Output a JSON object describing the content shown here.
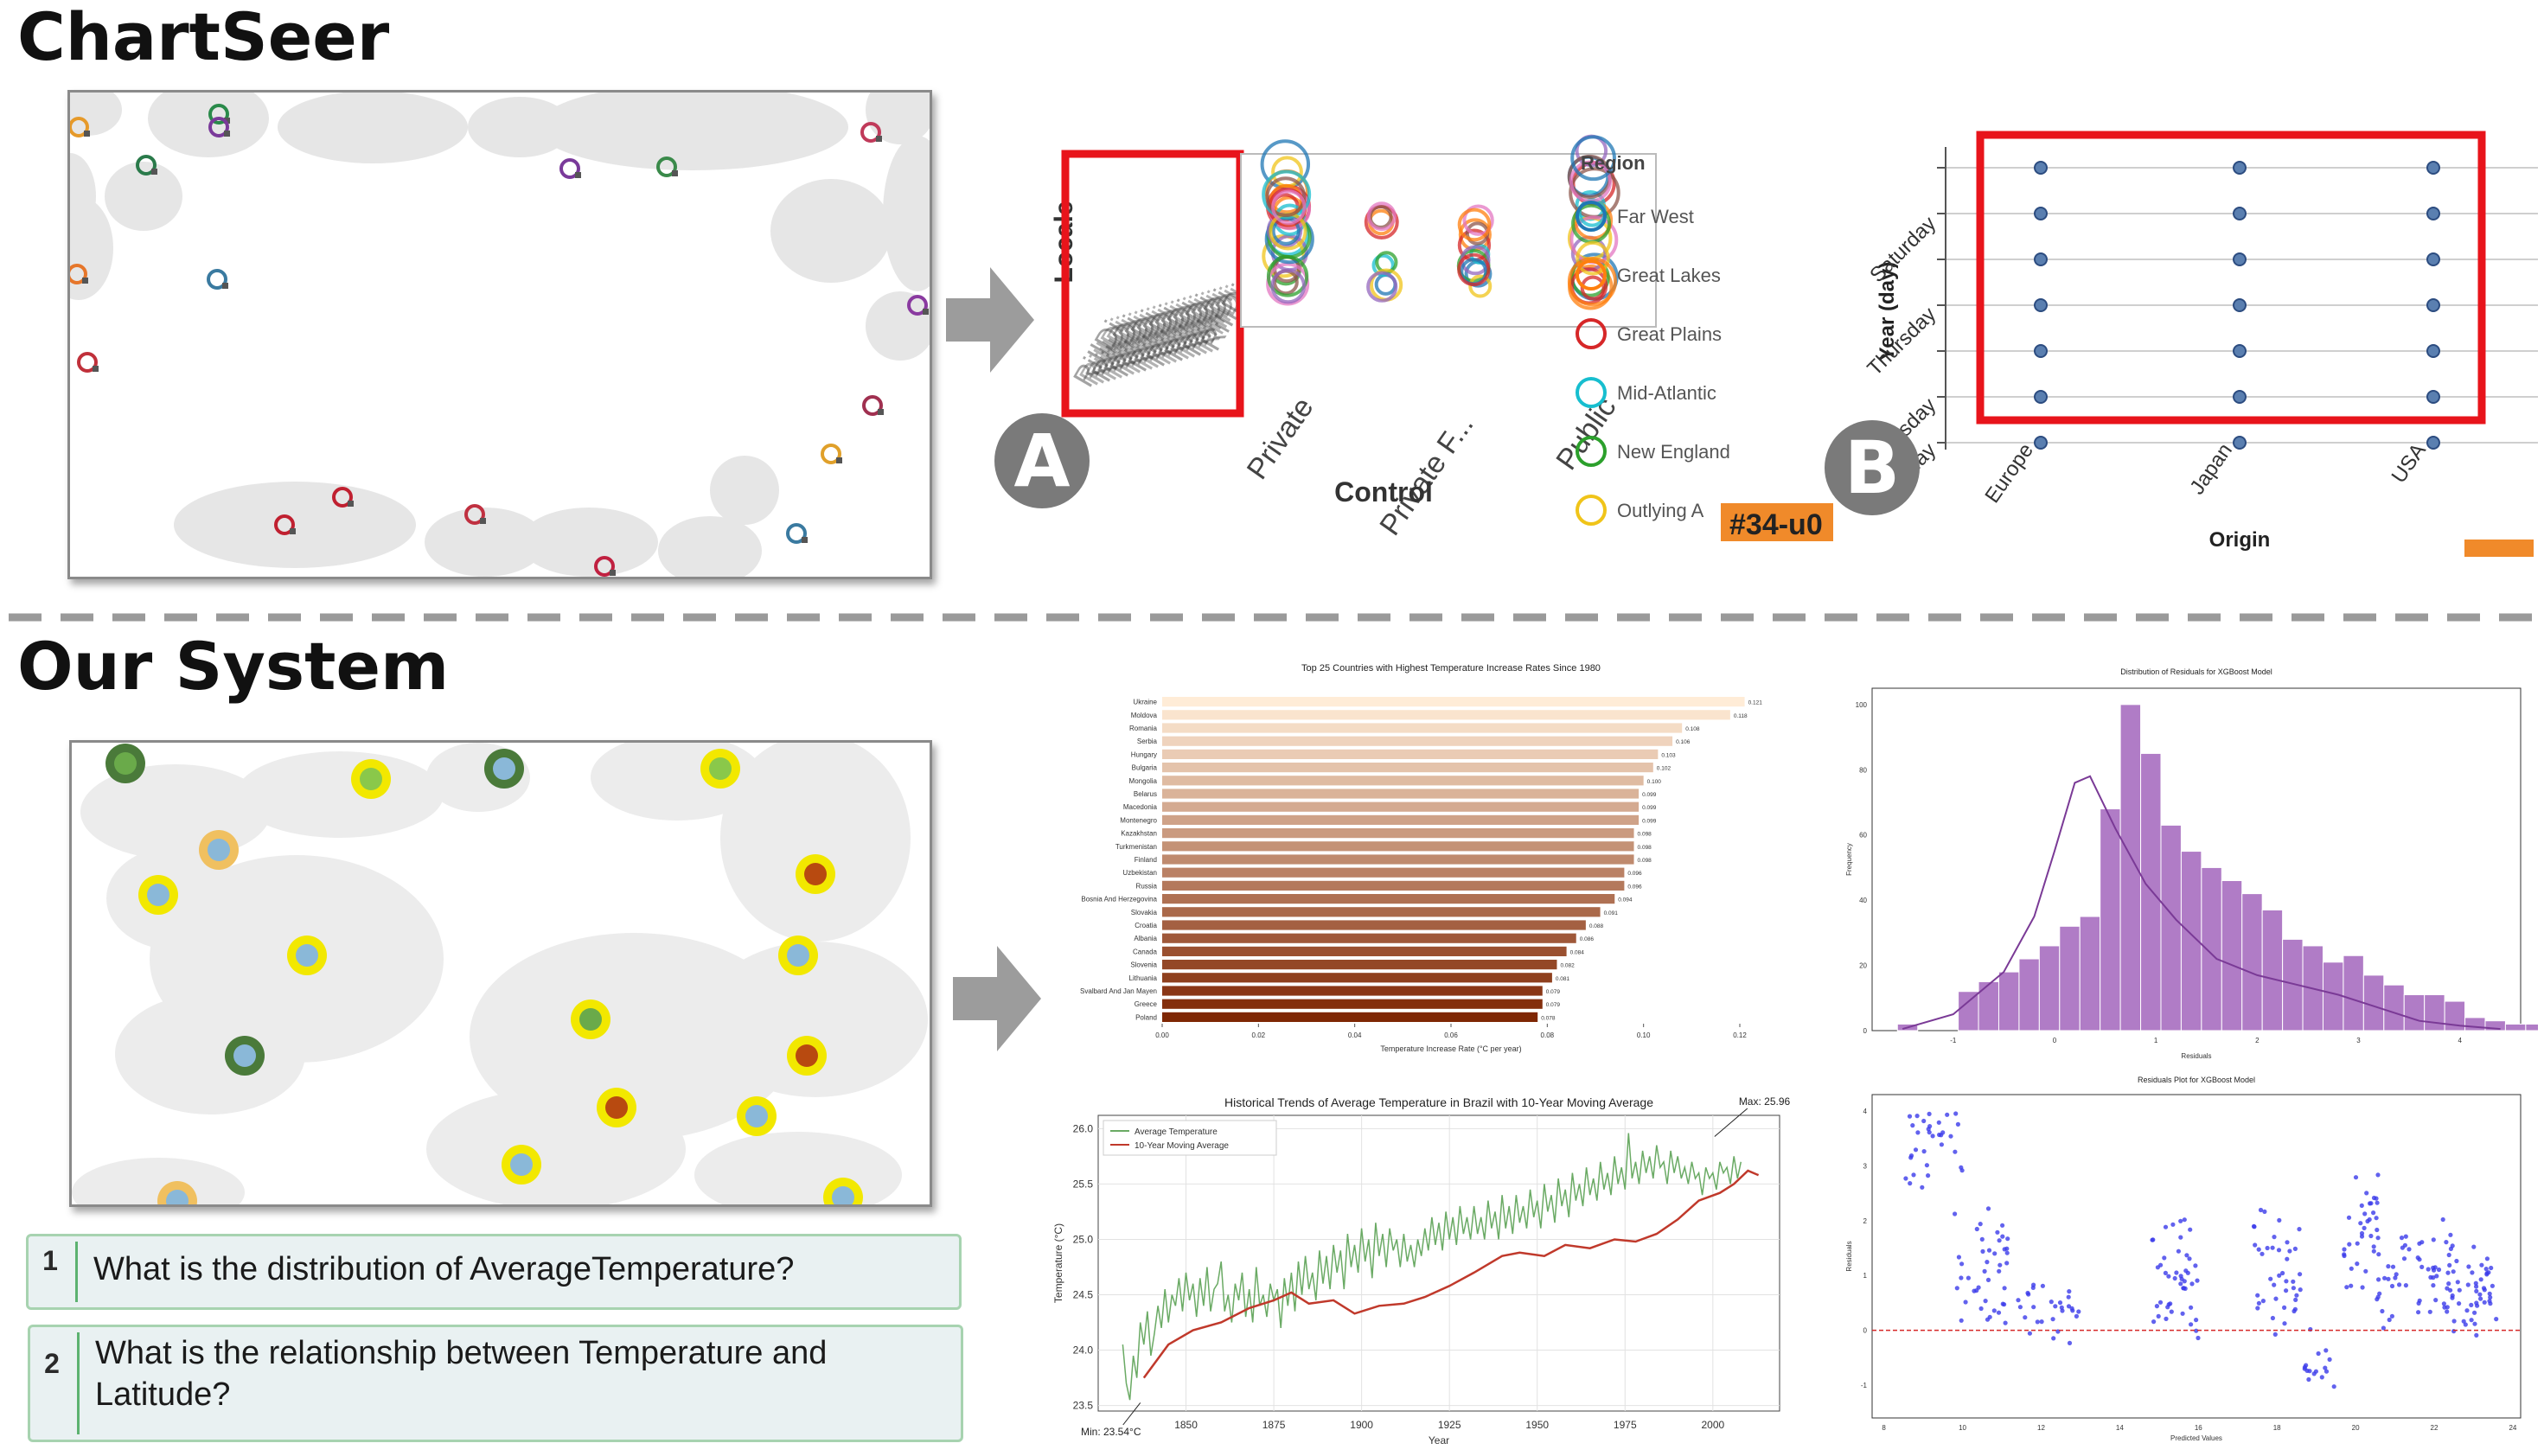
{
  "titles": {
    "chartseer": "ChartSeer",
    "our_system": "Our System"
  },
  "badges": {
    "a": "A",
    "b": "B"
  },
  "chartseer_panel_a": {
    "y_label": "Locale",
    "x_label": "Control",
    "x_ticks": [
      "Private",
      "Private F...",
      "Public"
    ],
    "legend_title": "Region",
    "legend_items": [
      {
        "label": "Far West",
        "color": "#1f77b4"
      },
      {
        "label": "Great Lakes",
        "color": "#ff7f0e"
      },
      {
        "label": "Great Plains",
        "color": "#d62728"
      },
      {
        "label": "Mid-Atlantic",
        "color": "#17becf"
      },
      {
        "label": "New England",
        "color": "#2ca02c"
      },
      {
        "label": "Outlying A",
        "color": "#f0c419"
      }
    ],
    "tag": "#34-u0"
  },
  "chartseer_panel_b": {
    "y_label": "Year (day)",
    "x_label": "Origin",
    "x_ticks": [
      "Europe",
      "Japan",
      "USA"
    ],
    "y_ticks": [
      "Saturday",
      "Thursday",
      "Tuesday",
      "day"
    ]
  },
  "questions": [
    {
      "num": "1",
      "text": "What is the distribution of AverageTemperature?"
    },
    {
      "num": "2",
      "text": "What is the relationship between Temperature and Latitude?"
    }
  ],
  "chart_data": [
    {
      "type": "bar",
      "orientation": "horizontal",
      "title": "Top 25 Countries with Highest Temperature Increase Rates Since 1980",
      "xlabel": "Temperature Increase Rate (°C per year)",
      "categories": [
        "Ukraine",
        "Moldova",
        "Romania",
        "Serbia",
        "Hungary",
        "Bulgaria",
        "Mongolia",
        "Belarus",
        "Macedonia",
        "Montenegro",
        "Kazakhstan",
        "Turkmenistan",
        "Finland",
        "Uzbekistan",
        "Russia",
        "Bosnia And Herzegovina",
        "Slovakia",
        "Croatia",
        "Albania",
        "Canada",
        "Slovenia",
        "Lithuania",
        "Svalbard And Jan Mayen",
        "Greece",
        "Poland"
      ],
      "values": [
        0.121,
        0.118,
        0.108,
        0.106,
        0.103,
        0.102,
        0.1,
        0.099,
        0.099,
        0.099,
        0.098,
        0.098,
        0.098,
        0.096,
        0.096,
        0.094,
        0.091,
        0.088,
        0.086,
        0.084,
        0.082,
        0.081,
        0.079,
        0.079,
        0.078
      ],
      "value_labels": [
        "0.121",
        "0.118",
        "0.108",
        "0.106",
        "0.103",
        "0.102",
        "0.100",
        "0.099",
        "0.099",
        "0.099",
        "0.098",
        "0.098",
        "0.098",
        "0.096",
        "0.096",
        "0.094",
        "0.091",
        "0.088",
        "0.086",
        "0.084",
        "0.082",
        "0.081",
        "0.079",
        "0.079",
        "0.078"
      ],
      "xlim": [
        0,
        0.12
      ],
      "xticks": [
        "0.00",
        "0.02",
        "0.04",
        "0.06",
        "0.08",
        "0.10",
        "0.12"
      ]
    },
    {
      "type": "bar",
      "subtype": "histogram",
      "title": "Distribution of Residuals for XGBoost Model",
      "xlabel": "Residuals",
      "ylabel": "Frequency",
      "bin_start": -1.55,
      "bin_width": 0.2,
      "counts": [
        2,
        0,
        0,
        12,
        15,
        18,
        22,
        26,
        32,
        35,
        68,
        100,
        85,
        63,
        55,
        50,
        46,
        42,
        37,
        28,
        26,
        21,
        23,
        17,
        14,
        11,
        11,
        9,
        4,
        3,
        2,
        2,
        2
      ],
      "kde": [
        [
          -1.5,
          0.5
        ],
        [
          -1.0,
          5
        ],
        [
          -0.5,
          18
        ],
        [
          -0.2,
          35
        ],
        [
          0.0,
          55
        ],
        [
          0.2,
          76
        ],
        [
          0.35,
          78
        ],
        [
          0.6,
          62
        ],
        [
          0.9,
          45
        ],
        [
          1.2,
          34
        ],
        [
          1.6,
          22
        ],
        [
          2.0,
          17
        ],
        [
          2.4,
          14
        ],
        [
          2.8,
          11
        ],
        [
          3.2,
          7
        ],
        [
          3.6,
          3
        ],
        [
          4.0,
          1.5
        ],
        [
          4.4,
          0.5
        ]
      ],
      "xlim": [
        -1.8,
        4.6
      ],
      "ylim": [
        0,
        105
      ],
      "xticks": [
        "-1",
        "0",
        "1",
        "2",
        "3",
        "4"
      ],
      "yticks": [
        "0",
        "20",
        "40",
        "60",
        "80",
        "100"
      ]
    },
    {
      "type": "line",
      "title": "Historical Trends of Average Temperature in Brazil with 10-Year Moving Average",
      "xlabel": "Year",
      "ylabel": "Temperature (°C)",
      "xlim": [
        1825,
        2019
      ],
      "ylim": [
        23.45,
        26.12
      ],
      "xticks": [
        "1850",
        "1875",
        "1900",
        "1925",
        "1950",
        "1975",
        "2000"
      ],
      "yticks": [
        "23.5",
        "24.0",
        "24.5",
        "25.0",
        "25.5",
        "26.0"
      ],
      "series": [
        {
          "name": "Average Temperature",
          "color": "#6aaa64",
          "start_year": 1832,
          "values": [
            24.05,
            23.7,
            23.55,
            23.95,
            23.75,
            24.25,
            24.05,
            24.35,
            23.95,
            24.15,
            24.4,
            24.2,
            24.55,
            24.25,
            24.5,
            24.4,
            24.65,
            24.35,
            24.7,
            24.45,
            24.6,
            24.3,
            24.65,
            24.4,
            24.75,
            24.35,
            24.55,
            24.6,
            24.8,
            24.35,
            24.5,
            24.25,
            24.6,
            24.45,
            24.7,
            24.3,
            24.55,
            24.25,
            24.75,
            24.4,
            24.5,
            24.3,
            24.6,
            24.45,
            24.55,
            24.2,
            24.65,
            24.4,
            24.7,
            24.35,
            24.8,
            24.5,
            24.85,
            24.55,
            24.7,
            24.45,
            24.9,
            24.6,
            24.85,
            24.55,
            24.95,
            24.7,
            24.9,
            24.55,
            25.05,
            24.75,
            24.95,
            24.7,
            25.1,
            24.8,
            25.0,
            24.65,
            25.15,
            24.85,
            25.05,
            24.75,
            25.1,
            24.9,
            25.0,
            24.75,
            25.05,
            24.8,
            24.95,
            24.75,
            25.0,
            24.85,
            25.1,
            24.9,
            25.2,
            24.95,
            25.15,
            24.9,
            25.25,
            25.0,
            25.2,
            24.95,
            25.3,
            25.05,
            25.2,
            25.0,
            25.3,
            25.05,
            25.2,
            25.0,
            25.35,
            25.1,
            25.25,
            25.0,
            25.4,
            25.1,
            25.3,
            25.05,
            25.4,
            25.15,
            25.3,
            25.1,
            25.45,
            25.2,
            25.35,
            25.1,
            25.5,
            25.25,
            25.4,
            25.15,
            25.55,
            25.3,
            25.45,
            25.2,
            25.6,
            25.35,
            25.5,
            25.3,
            25.65,
            25.4,
            25.55,
            25.35,
            25.7,
            25.45,
            25.6,
            25.4,
            25.75,
            25.5,
            25.65,
            25.45,
            25.96,
            25.55,
            25.7,
            25.5,
            25.8,
            25.6,
            25.75,
            25.55,
            25.85,
            25.65,
            25.7,
            25.5,
            25.8,
            25.6,
            25.75,
            25.55,
            25.65,
            25.5,
            25.7,
            25.55,
            25.6,
            25.4,
            25.65,
            25.55,
            25.6,
            25.45,
            25.7,
            25.6,
            25.65,
            25.5,
            25.75,
            25.55,
            25.7
          ]
        },
        {
          "name": "10-Year Moving Average",
          "color": "#c0392b",
          "points": [
            [
              1838,
              23.75
            ],
            [
              1845,
              24.05
            ],
            [
              1852,
              24.18
            ],
            [
              1860,
              24.25
            ],
            [
              1868,
              24.38
            ],
            [
              1875,
              24.45
            ],
            [
              1880,
              24.52
            ],
            [
              1885,
              24.42
            ],
            [
              1892,
              24.45
            ],
            [
              1898,
              24.33
            ],
            [
              1905,
              24.4
            ],
            [
              1912,
              24.42
            ],
            [
              1918,
              24.48
            ],
            [
              1925,
              24.58
            ],
            [
              1932,
              24.7
            ],
            [
              1940,
              24.85
            ],
            [
              1945,
              24.88
            ],
            [
              1952,
              24.85
            ],
            [
              1958,
              24.95
            ],
            [
              1965,
              24.92
            ],
            [
              1972,
              25.0
            ],
            [
              1978,
              24.98
            ],
            [
              1984,
              25.05
            ],
            [
              1990,
              25.18
            ],
            [
              1996,
              25.35
            ],
            [
              2002,
              25.42
            ],
            [
              2006,
              25.5
            ],
            [
              2010,
              25.62
            ],
            [
              2013,
              25.58
            ]
          ]
        }
      ],
      "annotations": [
        {
          "text": "Max: 25.96°C",
          "x": 2000,
          "y": 25.96
        },
        {
          "text": "Min: 23.54°C",
          "x": 1837,
          "y": 23.54
        }
      ]
    },
    {
      "type": "scatter",
      "title": "Residuals Plot for XGBoost Model",
      "xlabel": "Predicted Values",
      "ylabel": "Residuals",
      "xlim": [
        7.7,
        24.2
      ],
      "ylim": [
        -1.6,
        4.3
      ],
      "xticks": [
        "8",
        "10",
        "12",
        "14",
        "16",
        "18",
        "20",
        "22",
        "24"
      ],
      "yticks": [
        "-1",
        "0",
        "1",
        "2",
        "3",
        "4"
      ],
      "reference_line_y": 0,
      "clusters": [
        {
          "xs": [
            8.5,
            10.0
          ],
          "ys": [
            2.6,
            4.1
          ],
          "n": 32
        },
        {
          "xs": [
            9.8,
            11.2
          ],
          "ys": [
            0.0,
            2.5
          ],
          "n": 42
        },
        {
          "xs": [
            11.4,
            13.0
          ],
          "ys": [
            -0.4,
            1.0
          ],
          "n": 28
        },
        {
          "xs": [
            14.8,
            16.0
          ],
          "ys": [
            -0.3,
            2.2
          ],
          "n": 45
        },
        {
          "xs": [
            17.4,
            18.6
          ],
          "ys": [
            -0.2,
            2.3
          ],
          "n": 40
        },
        {
          "xs": [
            18.7,
            19.5
          ],
          "ys": [
            -1.2,
            0.1
          ],
          "n": 16
        },
        {
          "xs": [
            19.7,
            20.6
          ],
          "ys": [
            0.6,
            3.2
          ],
          "n": 34
        },
        {
          "xs": [
            20.5,
            22.6
          ],
          "ys": [
            -0.2,
            2.2
          ],
          "n": 60
        },
        {
          "xs": [
            22.3,
            23.6
          ],
          "ys": [
            -0.2,
            1.6
          ],
          "n": 45
        }
      ]
    }
  ]
}
